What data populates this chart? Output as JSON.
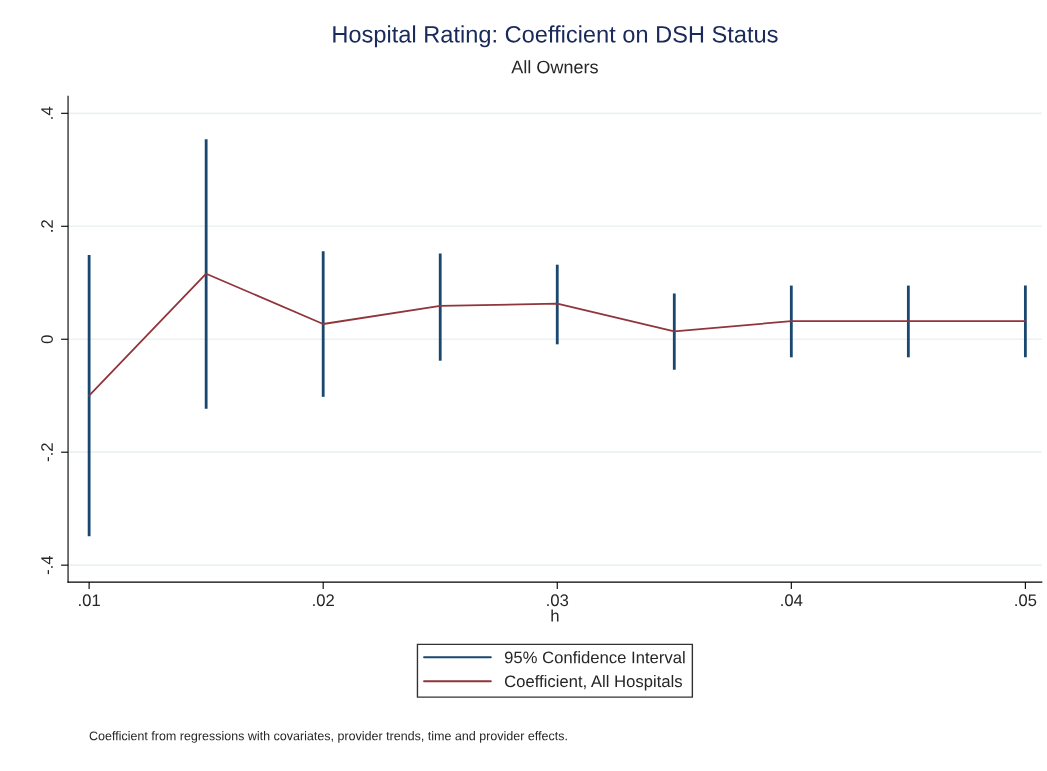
{
  "chart_data": {
    "type": "line",
    "title": "Hospital Rating: Coefficient on DSH Status",
    "subtitle": "All Owners",
    "xlabel": "h",
    "x": [
      0.01,
      0.015,
      0.02,
      0.025,
      0.03,
      0.035,
      0.04,
      0.045,
      0.05
    ],
    "series": [
      {
        "name": "95% Confidence Interval",
        "type": "bar",
        "color": "#1a476f",
        "base": [
          -0.349,
          -0.123,
          -0.102,
          -0.038,
          -0.009,
          -0.054,
          -0.032,
          -0.032,
          -0.032
        ],
        "values": [
          0.498,
          0.477,
          0.258,
          0.19,
          0.141,
          0.135,
          0.127,
          0.127,
          0.127
        ]
      },
      {
        "name": "Coefficient, All Hospitals",
        "color": "#90353b",
        "values": [
          -0.1,
          0.116,
          0.027,
          0.059,
          0.063,
          0.014,
          0.032,
          0.032,
          0.032
        ]
      }
    ],
    "xlim": [
      0.0091,
      0.0507
    ],
    "ylim": [
      -0.43,
      0.43
    ],
    "xticks": [
      {
        "value": 0.01,
        "label": ".01"
      },
      {
        "value": 0.02,
        "label": ".02"
      },
      {
        "value": 0.03,
        "label": ".03"
      },
      {
        "value": 0.04,
        "label": ".04"
      },
      {
        "value": 0.05,
        "label": ".05"
      }
    ],
    "yticks": [
      {
        "value": -0.4,
        "label": "-.4"
      },
      {
        "value": -0.2,
        "label": "-.2"
      },
      {
        "value": 0,
        "label": "0"
      },
      {
        "value": 0.2,
        "label": ".2"
      },
      {
        "value": 0.4,
        "label": ".4"
      }
    ],
    "grid": "y",
    "legend": "bottom",
    "annotations": [
      "Coefficient from regressions with covariates, provider trends, time and provider effects."
    ]
  }
}
